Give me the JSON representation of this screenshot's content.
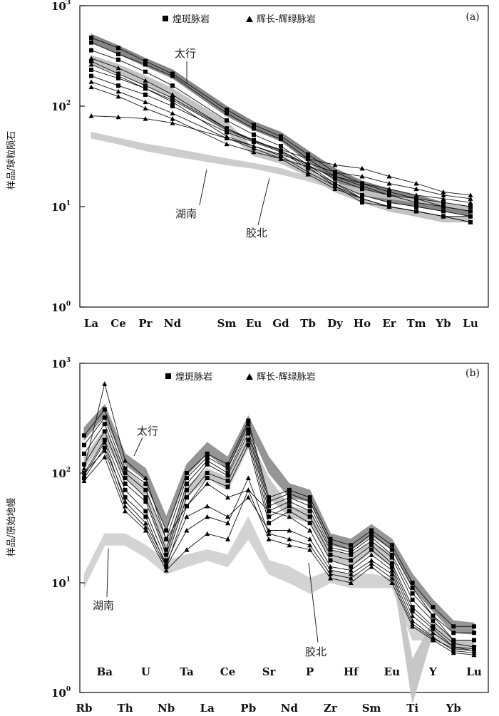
{
  "chart_data": [
    {
      "panel": "(a)",
      "type": "line",
      "ylabel": "样品/球粒陨石",
      "yscale": "log",
      "ylim": [
        1,
        1000
      ],
      "yticks": [
        {
          "base": "10",
          "exp": "0"
        },
        {
          "base": "10",
          "exp": "1"
        },
        {
          "base": "10",
          "exp": "2"
        },
        {
          "base": "10",
          "exp": "3"
        }
      ],
      "categories": [
        "La",
        "Ce",
        "Pr",
        "Nd",
        "Sm",
        "Eu",
        "Gd",
        "Tb",
        "Dy",
        "Ho",
        "Er",
        "Tm",
        "Yb",
        "Lu"
      ],
      "category_positions": [
        0,
        1,
        2,
        3,
        5,
        6,
        7,
        8,
        9,
        10,
        11,
        12,
        13,
        14
      ],
      "legend": [
        {
          "marker": "square",
          "label": "煌斑脉岩"
        },
        {
          "marker": "triangle",
          "label": "辉长-辉绿脉岩"
        }
      ],
      "annotations": [
        "太行",
        "湖南",
        "胶北"
      ],
      "series": [
        {
          "marker": "square",
          "values": [
            480,
            380,
            280,
            210,
            92,
            65,
            50,
            33,
            22,
            17,
            14,
            12,
            10,
            9
          ]
        },
        {
          "marker": "square",
          "values": [
            430,
            330,
            260,
            200,
            85,
            60,
            47,
            30,
            20,
            16,
            13,
            11,
            10,
            9
          ]
        },
        {
          "marker": "square",
          "values": [
            360,
            290,
            220,
            160,
            72,
            52,
            40,
            26,
            17,
            12,
            10,
            9,
            8,
            7
          ]
        },
        {
          "marker": "square",
          "values": [
            280,
            210,
            160,
            120,
            60,
            46,
            36,
            25,
            16,
            11,
            10,
            9,
            8,
            8
          ]
        },
        {
          "marker": "square",
          "values": [
            230,
            190,
            150,
            115,
            58,
            45,
            36,
            26,
            19,
            15,
            13,
            12,
            11,
            10
          ]
        },
        {
          "marker": "square",
          "values": [
            200,
            160,
            130,
            100,
            55,
            44,
            35,
            24,
            17,
            13,
            11,
            10,
            9,
            8
          ]
        },
        {
          "marker": "triangle",
          "values": [
            175,
            140,
            110,
            85,
            48,
            40,
            32,
            22,
            16,
            12,
            10,
            9,
            8,
            7
          ]
        },
        {
          "marker": "triangle",
          "values": [
            155,
            125,
            95,
            75,
            42,
            35,
            30,
            21,
            15,
            12,
            10,
            9,
            8,
            7
          ]
        },
        {
          "marker": "triangle",
          "values": [
            260,
            200,
            150,
            110,
            50,
            40,
            33,
            27,
            22,
            20,
            17,
            15,
            13,
            12
          ]
        },
        {
          "marker": "triangle",
          "values": [
            300,
            240,
            180,
            130,
            60,
            45,
            37,
            30,
            26,
            24,
            20,
            17,
            14,
            13
          ]
        },
        {
          "marker": "triangle",
          "values": [
            80,
            78,
            75,
            68,
            48,
            38,
            30,
            25,
            20,
            17,
            15,
            13,
            12,
            11
          ]
        }
      ],
      "bands": [
        {
          "name": "太行",
          "color": "#7a7a7a",
          "upper": [
            520,
            400,
            300,
            230,
            100,
            70,
            55,
            36,
            24,
            18,
            15,
            13,
            11,
            10
          ],
          "lower": [
            430,
            330,
            250,
            190,
            80,
            58,
            45,
            28,
            18,
            13,
            11,
            10,
            9,
            8
          ]
        },
        {
          "name": "湖南",
          "color": "#c8c8c8",
          "upper": [
            55,
            48,
            42,
            38,
            30,
            27,
            24,
            20,
            17,
            15,
            13,
            12,
            11,
            10
          ],
          "lower": [
            48,
            42,
            36,
            32,
            26,
            24,
            21,
            18,
            15,
            13,
            12,
            11,
            10,
            9
          ]
        },
        {
          "name": "胶北",
          "color": "#bdbdbd",
          "upper": [
            320,
            260,
            200,
            150,
            70,
            38,
            32,
            24,
            16,
            12,
            10,
            9,
            8,
            8
          ],
          "lower": [
            260,
            210,
            160,
            120,
            55,
            32,
            27,
            20,
            14,
            11,
            9,
            8,
            7,
            7
          ]
        }
      ]
    },
    {
      "panel": "(b)",
      "type": "line",
      "ylabel": "样品/原始地幔",
      "yscale": "log",
      "ylim": [
        1,
        1000
      ],
      "yticks": [
        {
          "base": "10",
          "exp": "0"
        },
        {
          "base": "10",
          "exp": "1"
        },
        {
          "base": "10",
          "exp": "2"
        },
        {
          "base": "10",
          "exp": "3"
        }
      ],
      "categories": [
        "Rb",
        "Ba",
        "Th",
        "U",
        "Nb",
        "Ta",
        "La",
        "Ce",
        "Pb",
        "Sr",
        "Nd",
        "P",
        "Zr",
        "Hf",
        "Sm",
        "Eu",
        "Ti",
        "Y",
        "Yb",
        "Lu"
      ],
      "top_labels": [
        "Ba",
        "U",
        "Ta",
        "Ce",
        "Sr",
        "P",
        "Hf",
        "Eu",
        "Y",
        "Lu"
      ],
      "bottom_labels": [
        "Rb",
        "Th",
        "Nb",
        "La",
        "Pb",
        "Nd",
        "Zr",
        "Sm",
        "Ti",
        "Yb"
      ],
      "legend": [
        {
          "marker": "square",
          "label": "煌斑脉岩"
        },
        {
          "marker": "triangle",
          "label": "辉长-辉绿脉岩"
        }
      ],
      "annotations": [
        "太行",
        "湖南",
        "胶北"
      ],
      "series": [
        {
          "marker": "square",
          "values": [
            220,
            380,
            110,
            80,
            30,
            100,
            150,
            120,
            300,
            60,
            70,
            60,
            25,
            22,
            30,
            22,
            10,
            6,
            4,
            4
          ]
        },
        {
          "marker": "square",
          "values": [
            180,
            320,
            100,
            70,
            25,
            90,
            140,
            110,
            280,
            55,
            65,
            55,
            23,
            20,
            28,
            20,
            9,
            5,
            3.5,
            3.5
          ]
        },
        {
          "marker": "square",
          "values": [
            150,
            280,
            90,
            60,
            20,
            80,
            130,
            100,
            250,
            50,
            60,
            50,
            21,
            19,
            26,
            18,
            8,
            5,
            3,
            3
          ]
        },
        {
          "marker": "square",
          "values": [
            120,
            240,
            80,
            55,
            18,
            70,
            120,
            95,
            230,
            45,
            55,
            45,
            20,
            18,
            24,
            17,
            7,
            4.5,
            3,
            3
          ]
        },
        {
          "marker": "square",
          "values": [
            100,
            200,
            70,
            45,
            16,
            60,
            100,
            85,
            200,
            40,
            50,
            40,
            18,
            16,
            22,
            15,
            6,
            4,
            2.8,
            2.6
          ]
        },
        {
          "marker": "square",
          "values": [
            90,
            170,
            60,
            40,
            14,
            50,
            90,
            75,
            180,
            35,
            45,
            35,
            16,
            14,
            20,
            14,
            5.5,
            3.8,
            2.6,
            2.5
          ]
        },
        {
          "marker": "triangle",
          "values": [
            110,
            650,
            130,
            90,
            25,
            50,
            80,
            60,
            70,
            45,
            40,
            30,
            14,
            13,
            18,
            13,
            5,
            3.5,
            2.6,
            2.4
          ]
        },
        {
          "marker": "triangle",
          "values": [
            95,
            190,
            55,
            35,
            15,
            40,
            50,
            40,
            60,
            30,
            30,
            25,
            13,
            12,
            16,
            12,
            4.5,
            3.2,
            2.4,
            2.3
          ]
        },
        {
          "marker": "triangle",
          "values": [
            85,
            140,
            45,
            30,
            13,
            20,
            28,
            25,
            70,
            25,
            22,
            20,
            11,
            10,
            14,
            10,
            4,
            3,
            2.3,
            2.2
          ]
        },
        {
          "marker": "triangle",
          "values": [
            100,
            160,
            50,
            32,
            14,
            30,
            40,
            35,
            90,
            28,
            25,
            22,
            12,
            11,
            15,
            11,
            4.2,
            3.1,
            2.5,
            2.4
          ]
        }
      ],
      "bands": [
        {
          "name": "太行",
          "color": "#8a8a8a",
          "upper": [
            260,
            420,
            150,
            110,
            40,
            120,
            190,
            140,
            330,
            140,
            80,
            70,
            28,
            25,
            34,
            25,
            12,
            7,
            4.5,
            4.3
          ],
          "lower": [
            200,
            330,
            120,
            85,
            30,
            95,
            150,
            110,
            260,
            100,
            60,
            55,
            22,
            20,
            27,
            20,
            9,
            5.5,
            3.5,
            3.4
          ]
        },
        {
          "name": "湖南",
          "color": "#cfcfcf",
          "upper": [
            12,
            28,
            28,
            22,
            16,
            18,
            20,
            18,
            40,
            16,
            14,
            11,
            13,
            12,
            12,
            11,
            4,
            3.5,
            3,
            3
          ],
          "lower": [
            9,
            22,
            22,
            17,
            12,
            14,
            16,
            14,
            25,
            12,
            10,
            8,
            10,
            9,
            9,
            9,
            3,
            3,
            2.6,
            2.6
          ]
        },
        {
          "name": "胶北",
          "color": "#c2c2c2",
          "upper": [
            140,
            250,
            110,
            75,
            22,
            75,
            110,
            90,
            220,
            90,
            50,
            45,
            20,
            18,
            24,
            18,
            2,
            4.5,
            3,
            3
          ],
          "lower": [
            110,
            200,
            90,
            60,
            17,
            60,
            90,
            70,
            170,
            60,
            40,
            35,
            16,
            14,
            19,
            14,
            0.8,
            3.5,
            2.5,
            2.5
          ]
        }
      ]
    }
  ]
}
